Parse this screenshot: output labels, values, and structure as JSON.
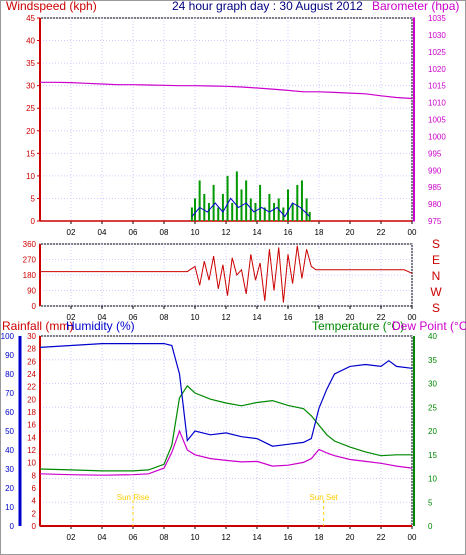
{
  "header": {
    "left_label": "Windspeed (kph)",
    "title": "24 hour graph day : 30 August 2012",
    "right_label": "Barometer (hpa)"
  },
  "colors": {
    "wind_axis": "#cc0000",
    "baro_axis": "#cc00cc",
    "gust_bars": "#009900",
    "avg_wind": "#0000cc",
    "windspeed_base": "#cc0000",
    "barometer": "#cc00cc",
    "direction": "#cc0000",
    "rain_axis": "#cc0000",
    "humidity": "#0000cc",
    "temperature": "#008800",
    "dewpoint": "#cc00cc",
    "sun_marker": "#ffcc00",
    "grid": "#ccccff"
  },
  "chart_data": [
    {
      "type": "line",
      "name": "wind-and-barometer",
      "x_ticks": [
        "02",
        "04",
        "06",
        "08",
        "10",
        "12",
        "14",
        "16",
        "18",
        "20",
        "22",
        "00"
      ],
      "y_left": {
        "label": "Windspeed (kph)",
        "range": [
          0,
          45
        ],
        "ticks": [
          "0",
          "5",
          "10",
          "15",
          "20",
          "25",
          "30",
          "35",
          "40",
          "45"
        ]
      },
      "y_right": {
        "label": "Barometer (hpa)",
        "range": [
          975,
          1035
        ],
        "ticks": [
          "975",
          "980",
          "985",
          "990",
          "995",
          "1000",
          "1005",
          "1010",
          "1015",
          "1020",
          "1025",
          "1030",
          "1035"
        ]
      },
      "series": [
        {
          "name": "Barometer (hpa)",
          "axis": "right",
          "x": [
            0,
            1,
            2,
            3,
            4,
            5,
            6,
            7,
            8,
            9,
            10,
            11,
            12,
            13,
            14,
            15,
            16,
            17,
            18,
            19,
            20,
            21,
            22,
            23,
            24
          ],
          "y": [
            1016.0,
            1016.0,
            1015.9,
            1015.7,
            1015.5,
            1015.3,
            1015.3,
            1015.2,
            1015.1,
            1015.0,
            1015.0,
            1014.9,
            1014.8,
            1014.6,
            1014.3,
            1014.0,
            1013.6,
            1013.2,
            1013.2,
            1013.0,
            1012.8,
            1012.6,
            1012.0,
            1011.5,
            1011.2
          ]
        },
        {
          "name": "gust",
          "axis": "left",
          "x": [
            9.8,
            10.0,
            10.3,
            10.6,
            10.9,
            11.2,
            11.5,
            11.8,
            12.1,
            12.4,
            12.7,
            13.0,
            13.3,
            13.6,
            13.9,
            14.2,
            14.5,
            14.8,
            15.1,
            15.4,
            15.7,
            16.0,
            16.3,
            16.6,
            16.9,
            17.2,
            17.4
          ],
          "y": [
            3,
            5,
            9,
            6,
            4,
            8,
            3,
            6,
            10,
            4,
            11,
            7,
            9,
            5,
            4,
            8,
            3,
            6,
            4,
            5,
            3,
            7,
            4,
            8,
            9,
            5,
            2
          ]
        },
        {
          "name": "average",
          "axis": "left",
          "x": [
            9.8,
            10.3,
            10.8,
            11.3,
            11.8,
            12.3,
            12.8,
            13.3,
            13.8,
            14.3,
            14.8,
            15.3,
            15.8,
            16.3,
            16.8,
            17.4
          ],
          "y": [
            1,
            3,
            2,
            4,
            2,
            5,
            3,
            4,
            2,
            3,
            2,
            3,
            1,
            4,
            3,
            1
          ]
        }
      ]
    },
    {
      "type": "line",
      "name": "wind-direction",
      "x_ticks": [
        "02",
        "04",
        "06",
        "08",
        "10",
        "12",
        "14",
        "16",
        "18",
        "20",
        "22",
        "00"
      ],
      "y_left": {
        "range": [
          0,
          360
        ],
        "ticks": [
          "0",
          "90",
          "180",
          "270",
          "360"
        ]
      },
      "y_right_labels": [
        "S",
        "E",
        "N",
        "W",
        "S"
      ],
      "series": [
        {
          "name": "direction",
          "x": [
            0,
            9.5,
            10.0,
            10.3,
            10.6,
            10.9,
            11.2,
            11.5,
            11.8,
            12.1,
            12.4,
            12.7,
            13.0,
            13.3,
            13.6,
            13.9,
            14.2,
            14.5,
            14.8,
            15.1,
            15.4,
            15.7,
            16.0,
            16.3,
            16.6,
            16.9,
            17.2,
            17.5,
            17.8,
            18.0,
            23.5,
            24
          ],
          "y": [
            200,
            200,
            230,
            120,
            260,
            150,
            290,
            100,
            240,
            60,
            280,
            180,
            210,
            70,
            300,
            150,
            250,
            30,
            330,
            90,
            340,
            20,
            300,
            130,
            350,
            160,
            330,
            230,
            210,
            210,
            210,
            190
          ]
        }
      ]
    },
    {
      "type": "line",
      "name": "rain-humidity-temperature",
      "x_ticks": [
        "02",
        "04",
        "06",
        "08",
        "10",
        "12",
        "14",
        "16",
        "18",
        "20",
        "22",
        "00"
      ],
      "y_rain": {
        "label": "Rainfall (mm)",
        "range": [
          0,
          30
        ],
        "ticks": [
          "0",
          "2",
          "4",
          "6",
          "8",
          "10",
          "12",
          "14",
          "16",
          "18",
          "20",
          "22",
          "24",
          "26",
          "28",
          "30"
        ]
      },
      "y_humidity": {
        "label": "Humidity (%)",
        "range": [
          0,
          100
        ],
        "ticks": [
          "0",
          "10",
          "20",
          "30",
          "40",
          "50",
          "60",
          "70",
          "80",
          "90",
          "100"
        ]
      },
      "y_temperature": {
        "label": "Temperature (°C)",
        "range": [
          0,
          40
        ],
        "ticks": [
          "0",
          "5",
          "10",
          "15",
          "20",
          "25",
          "30",
          "35",
          "40"
        ]
      },
      "right_label_dew": "Dew Point (°C)",
      "annotations": {
        "sunrise": "Sun Rise",
        "sunset": "Sun Set"
      },
      "series": [
        {
          "name": "Humidity (%)",
          "axis": "humidity",
          "x": [
            0,
            2,
            4,
            6,
            7,
            8,
            8.5,
            9,
            9.5,
            10,
            11,
            12,
            13,
            14,
            15,
            16,
            17,
            17.5,
            18,
            18.5,
            19,
            20,
            21,
            22,
            22.5,
            23,
            24
          ],
          "y": [
            94,
            95,
            96,
            96,
            96,
            96,
            95,
            80,
            45,
            50,
            48,
            49,
            47,
            46,
            42,
            43,
            44,
            46,
            62,
            72,
            80,
            84,
            85,
            84,
            87,
            84,
            83
          ]
        },
        {
          "name": "Temperature (°C)",
          "axis": "temperature",
          "x": [
            0,
            2,
            4,
            6,
            7,
            8,
            8.5,
            9,
            9.5,
            10,
            11,
            12,
            13,
            14,
            15,
            16,
            17,
            17.5,
            18,
            18.5,
            19,
            20,
            21,
            22,
            23,
            24
          ],
          "y": [
            12.0,
            11.8,
            11.6,
            11.6,
            11.8,
            13.0,
            17.0,
            27.0,
            29.5,
            28.0,
            26.7,
            25.9,
            25.3,
            26.0,
            26.4,
            25.4,
            24.7,
            23.2,
            21.2,
            19.2,
            17.9,
            16.6,
            15.6,
            14.8,
            15.0,
            15.0
          ]
        },
        {
          "name": "Dew Point (°C)",
          "axis": "temperature",
          "x": [
            0,
            2,
            4,
            6,
            7,
            8,
            8.5,
            9,
            9.5,
            10,
            11,
            12,
            13,
            14,
            15,
            16,
            17,
            17.5,
            18,
            18.5,
            19,
            20,
            21,
            22,
            23,
            24
          ],
          "y": [
            11.0,
            10.8,
            10.7,
            10.8,
            11.0,
            12.2,
            15.5,
            20.0,
            16.0,
            15.0,
            14.2,
            13.8,
            13.5,
            13.6,
            12.6,
            12.8,
            13.4,
            14.2,
            16.1,
            15.4,
            14.8,
            14.0,
            13.6,
            13.2,
            12.6,
            12.2
          ]
        }
      ]
    }
  ]
}
